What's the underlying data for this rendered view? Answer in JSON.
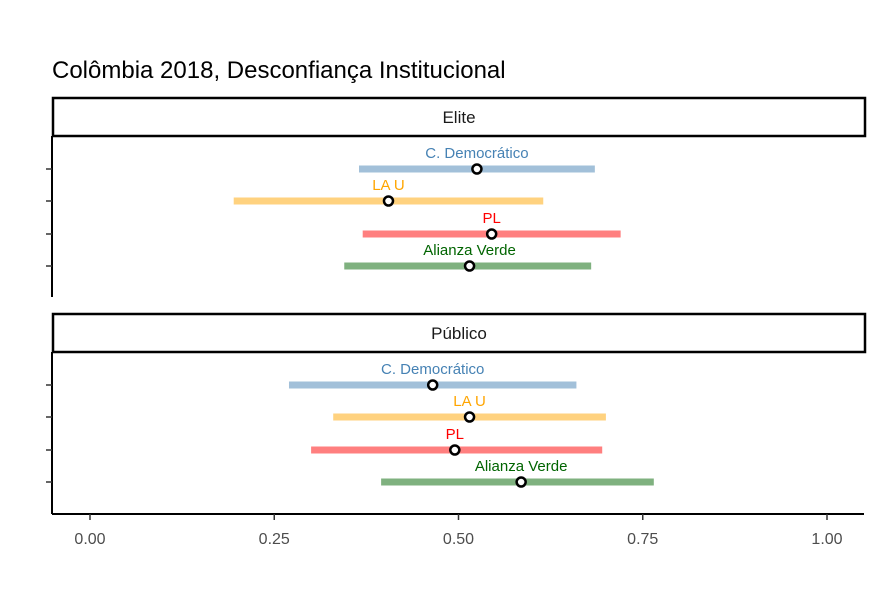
{
  "chart_data": {
    "type": "interval",
    "title": "Colômbia 2018, Desconfiança Institucional",
    "xlabel": "",
    "ylabel": "",
    "xlim": [
      -0.05,
      1.05
    ],
    "x_ticks": [
      0.0,
      0.25,
      0.5,
      0.75,
      1.0
    ],
    "x_tick_labels": [
      "0.00",
      "0.25",
      "0.50",
      "0.75",
      "1.00"
    ],
    "grid": false,
    "legend": "none",
    "colors": {
      "C. Democrático": "#4682b4",
      "LA U": "#ffa500",
      "PL": "#ff0000",
      "Alianza Verde": "#006400"
    },
    "panels": [
      {
        "label": "Elite",
        "series": [
          {
            "name": "C. Democrático",
            "mean": 0.525,
            "low": 0.365,
            "high": 0.685
          },
          {
            "name": "LA U",
            "mean": 0.405,
            "low": 0.195,
            "high": 0.615
          },
          {
            "name": "PL",
            "mean": 0.545,
            "low": 0.37,
            "high": 0.72
          },
          {
            "name": "Alianza Verde",
            "mean": 0.515,
            "low": 0.345,
            "high": 0.68
          }
        ]
      },
      {
        "label": "Público",
        "series": [
          {
            "name": "C. Democrático",
            "mean": 0.465,
            "low": 0.27,
            "high": 0.66
          },
          {
            "name": "LA U",
            "mean": 0.515,
            "low": 0.33,
            "high": 0.7
          },
          {
            "name": "PL",
            "mean": 0.495,
            "low": 0.3,
            "high": 0.695
          },
          {
            "name": "Alianza Verde",
            "mean": 0.585,
            "low": 0.395,
            "high": 0.765
          }
        ]
      }
    ]
  }
}
